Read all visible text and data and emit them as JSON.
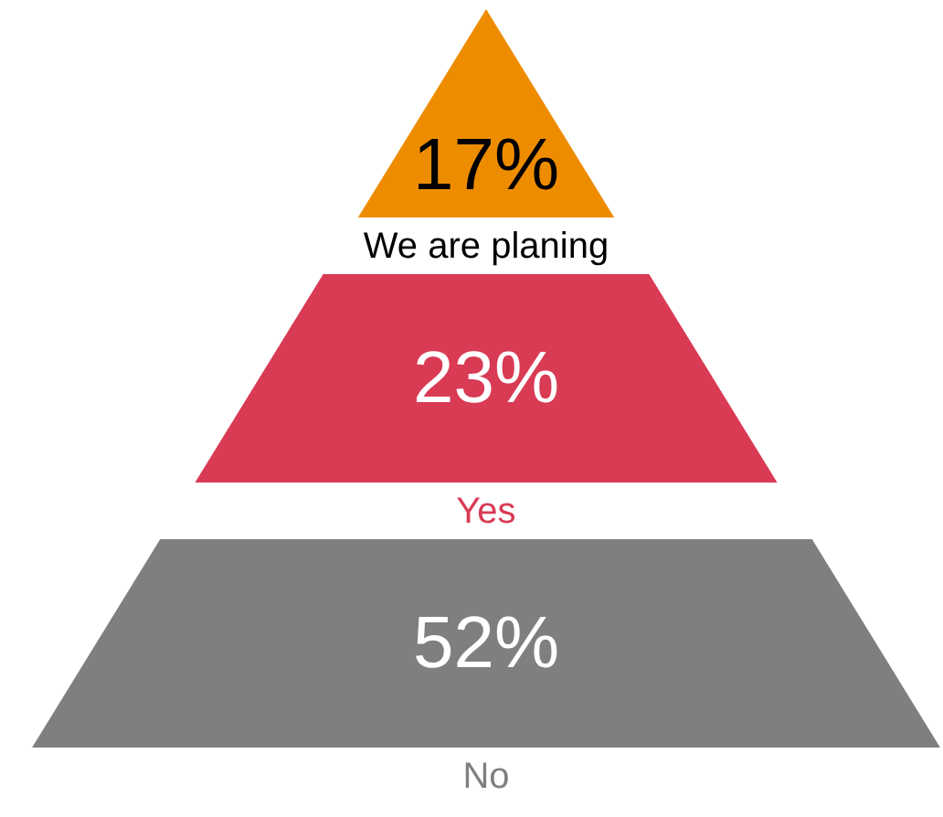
{
  "chart_data": {
    "type": "other",
    "categories": [
      "We are planing",
      "Yes",
      "No"
    ],
    "values": [
      17,
      23,
      52
    ],
    "value_labels": [
      "17%",
      "23%",
      "52%"
    ],
    "colors": [
      "#ee8c00",
      "#d93a54",
      "#7f7f7f"
    ]
  }
}
